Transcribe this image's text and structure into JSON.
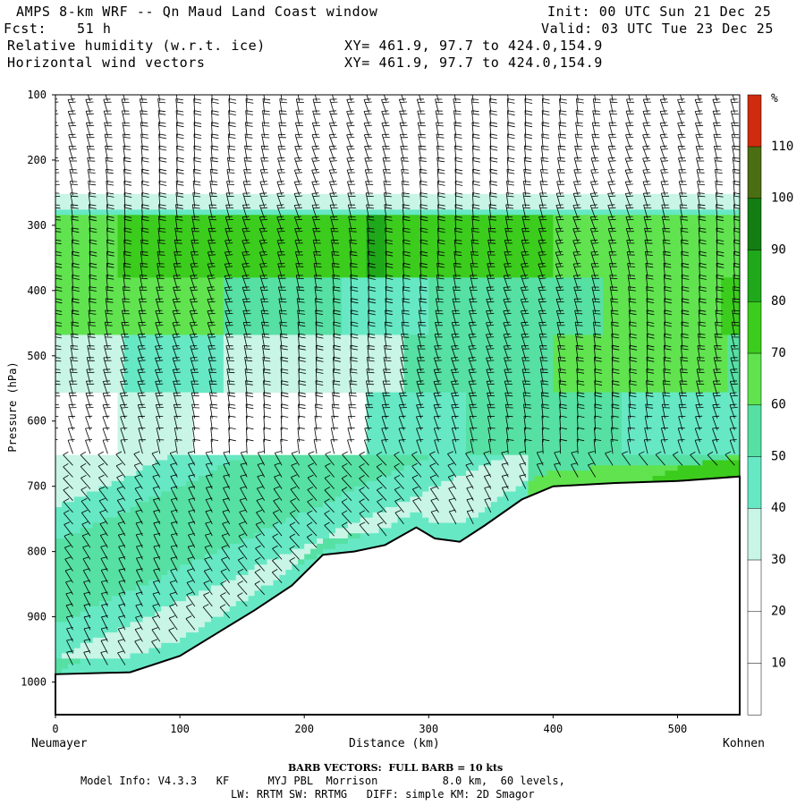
{
  "header": {
    "title": "AMPS 8-km WRF -- Qn Maud Land Coast window",
    "forecast_label": "Fcst:",
    "forecast_value": "51 h",
    "field1": "Relative humidity (w.r.t. ice)",
    "field2": "Horizontal wind vectors",
    "xy1": "XY= 461.9, 97.7 to 424.0,154.9",
    "xy2": "XY= 461.9, 97.7 to 424.0,154.9",
    "init": "Init: 00 UTC Sun 21 Dec 25",
    "valid": "Valid: 03 UTC Tue 23 Dec 25"
  },
  "footer": {
    "barb_note": "BARB VECTORS:  FULL BARB = 10 kts",
    "model_info": "Model Info: V4.3.3   KF      MYJ PBL  Morrison          8.0 km,  60 levels,",
    "model_info2": "LW: RRTM SW: RRTMG   DIFF: simple KM: 2D Smagor"
  },
  "colors": {
    "bands": [
      "#ffffff",
      "#ffffff",
      "#ffffff",
      "#c8f5e6",
      "#66e8c4",
      "#56e0a3",
      "#60e34f",
      "#3ccc1d",
      "#1fa81a",
      "#127e12",
      "#4b6e12",
      "#cf2b0f"
    ]
  },
  "chart_data": {
    "type": "cross-section",
    "title": "Relative humidity (w.r.t. ice)",
    "xlabel": "Distance (km)",
    "ylabel": "Pressure (hPa)",
    "xlim": [
      0,
      550
    ],
    "ylim": [
      1050,
      100
    ],
    "x_ticks": [
      0,
      100,
      200,
      300,
      400,
      500
    ],
    "y_ticks": [
      100,
      200,
      300,
      400,
      500,
      600,
      700,
      800,
      900,
      1000
    ],
    "start_label": "Neumayer",
    "end_label": "Kohnen",
    "colorbar": {
      "unit": "%",
      "ticks": [
        10,
        20,
        30,
        40,
        50,
        60,
        70,
        80,
        90,
        100,
        110
      ]
    },
    "terrain": [
      [
        0,
        988
      ],
      [
        60,
        985
      ],
      [
        100,
        960
      ],
      [
        130,
        925
      ],
      [
        160,
        890
      ],
      [
        190,
        852
      ],
      [
        215,
        805
      ],
      [
        240,
        800
      ],
      [
        265,
        790
      ],
      [
        290,
        763
      ],
      [
        305,
        780
      ],
      [
        325,
        785
      ],
      [
        345,
        760
      ],
      [
        375,
        720
      ],
      [
        400,
        700
      ],
      [
        450,
        695
      ],
      [
        500,
        692
      ],
      [
        550,
        685
      ]
    ]
  }
}
